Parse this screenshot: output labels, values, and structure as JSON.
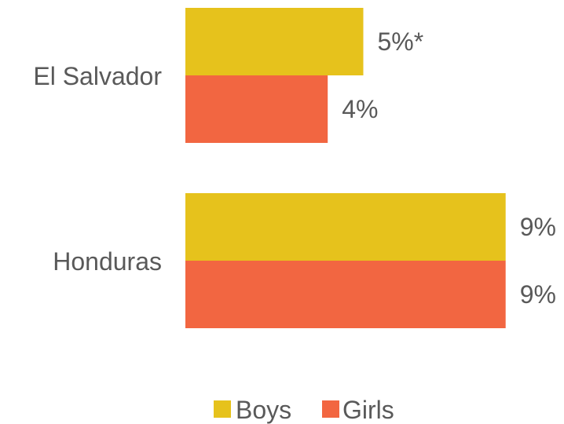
{
  "chart_data": {
    "type": "bar",
    "orientation": "horizontal",
    "categories": [
      "El Salvador",
      "Honduras"
    ],
    "series": [
      {
        "name": "Boys",
        "values": [
          5,
          9
        ],
        "labels": [
          "5%*",
          "9%"
        ],
        "color": "#E6C21C"
      },
      {
        "name": "Girls",
        "values": [
          4,
          9
        ],
        "labels": [
          "4%",
          "9%"
        ],
        "color": "#F26641"
      }
    ],
    "title": "",
    "xlabel": "",
    "ylabel": "",
    "xlim": [
      0,
      10
    ],
    "grid": false,
    "legend_position": "bottom"
  }
}
